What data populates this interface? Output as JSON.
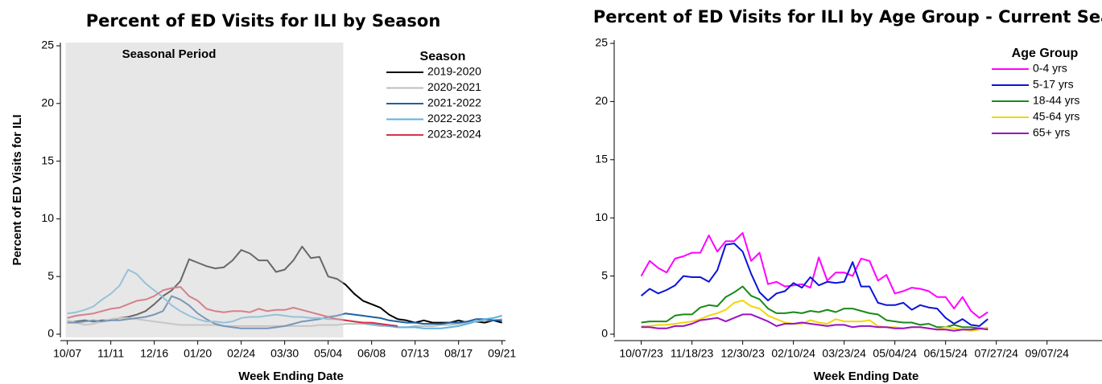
{
  "chart_data": [
    {
      "type": "line",
      "title": "Percent of ED Visits for ILI by Season",
      "x_label": "Week Ending Date",
      "y_label": "Percent of ED Visits for ILI",
      "annotation": "Seasonal Period",
      "shaded_range": [
        0,
        31
      ],
      "legend_title": "Season",
      "legend": "upper right",
      "xlim": [
        -0.8,
        50.4
      ],
      "ylim": [
        0,
        25
      ],
      "yticks": [
        0,
        5,
        10,
        15,
        20,
        25
      ],
      "xticks": [
        {
          "value": 0,
          "label": "10/07"
        },
        {
          "value": 5,
          "label": "11/11"
        },
        {
          "value": 10,
          "label": "12/16"
        },
        {
          "value": 15,
          "label": "01/20"
        },
        {
          "value": 20,
          "label": "02/24"
        },
        {
          "value": 25,
          "label": "03/30"
        },
        {
          "value": 30,
          "label": "05/04"
        },
        {
          "value": 35,
          "label": "06/08"
        },
        {
          "value": 40,
          "label": "07/13"
        },
        {
          "value": 45,
          "label": "08/17"
        },
        {
          "value": 50,
          "label": "09/21"
        }
      ],
      "x": [
        0,
        1,
        2,
        3,
        4,
        5,
        6,
        7,
        8,
        9,
        10,
        11,
        12,
        13,
        14,
        15,
        16,
        17,
        18,
        19,
        20,
        21,
        22,
        23,
        24,
        25,
        26,
        27,
        28,
        29,
        30,
        31,
        32,
        33,
        34,
        35,
        36,
        37,
        38,
        39,
        40,
        41,
        42,
        43,
        44,
        45,
        46,
        47,
        48,
        49,
        50
      ],
      "series": [
        {
          "name": "2019-2020",
          "color": "#000000",
          "values": [
            1.0,
            1.1,
            1.2,
            1.1,
            1.2,
            1.2,
            1.4,
            1.5,
            1.7,
            2.0,
            2.6,
            3.3,
            3.8,
            4.6,
            6.5,
            6.2,
            5.9,
            5.7,
            5.8,
            6.4,
            7.3,
            7.0,
            6.4,
            6.4,
            5.4,
            5.6,
            6.4,
            7.6,
            6.6,
            6.7,
            5.0,
            4.8,
            4.3,
            3.5,
            2.9,
            2.6,
            2.3,
            1.7,
            1.3,
            1.2,
            1.0,
            1.2,
            1.0,
            1.0,
            1.0,
            1.2,
            1.0,
            1.1,
            1.0,
            1.2,
            1.0
          ]
        },
        {
          "name": "2020-2021",
          "color": "#bdbdbd",
          "values": [
            1.2,
            1.0,
            0.8,
            0.9,
            1.1,
            1.3,
            1.4,
            1.4,
            1.3,
            1.2,
            1.1,
            1.0,
            0.9,
            0.8,
            0.8,
            0.8,
            0.8,
            0.8,
            0.7,
            0.7,
            0.7,
            0.7,
            0.7,
            0.7,
            0.7,
            0.7,
            0.7,
            0.7,
            0.7,
            0.8,
            0.8,
            0.8,
            0.9,
            0.9,
            0.9,
            0.8,
            0.7,
            0.7,
            0.6,
            0.6,
            0.7,
            0.7,
            0.7,
            0.8,
            0.8,
            0.9,
            1.0,
            1.1,
            1.2,
            1.2,
            1.3
          ]
        },
        {
          "name": "2021-2022",
          "color": "#1f5f9f",
          "values": [
            1.0,
            1.0,
            1.1,
            1.2,
            1.1,
            1.2,
            1.2,
            1.3,
            1.4,
            1.5,
            1.7,
            2.0,
            3.3,
            3.0,
            2.5,
            1.8,
            1.3,
            0.9,
            0.7,
            0.6,
            0.5,
            0.5,
            0.5,
            0.5,
            0.6,
            0.7,
            0.9,
            1.1,
            1.2,
            1.3,
            1.5,
            1.6,
            1.8,
            1.7,
            1.6,
            1.5,
            1.4,
            1.2,
            1.1,
            1.0,
            1.0,
            0.9,
            0.9,
            0.9,
            1.0,
            1.0,
            1.1,
            1.3,
            1.3,
            1.2,
            1.2
          ]
        },
        {
          "name": "2022-2023",
          "color": "#5ab4e5",
          "values": [
            1.8,
            1.9,
            2.1,
            2.4,
            3.0,
            3.5,
            4.2,
            5.6,
            5.2,
            4.4,
            3.8,
            3.2,
            2.5,
            2.0,
            1.6,
            1.3,
            1.1,
            1.1,
            1.0,
            1.1,
            1.4,
            1.5,
            1.5,
            1.6,
            1.7,
            1.6,
            1.5,
            1.5,
            1.4,
            1.4,
            1.3,
            1.3,
            1.2,
            1.1,
            1.0,
            0.9,
            0.8,
            0.7,
            0.6,
            0.6,
            0.6,
            0.5,
            0.5,
            0.5,
            0.6,
            0.7,
            0.9,
            1.1,
            1.3,
            1.4,
            1.6
          ]
        },
        {
          "name": "2023-2024",
          "color": "#d8324a",
          "values": [
            1.4,
            1.6,
            1.7,
            1.8,
            2.0,
            2.2,
            2.3,
            2.6,
            2.9,
            3.0,
            3.3,
            3.8,
            4.0,
            4.1,
            3.3,
            2.9,
            2.2,
            2.0,
            1.9,
            2.0,
            2.0,
            1.9,
            2.2,
            2.0,
            2.1,
            2.1,
            2.3,
            2.1,
            1.9,
            1.7,
            1.5,
            1.3,
            1.2,
            1.1,
            1.0,
            1.0,
            0.9,
            0.8,
            0.7,
            null,
            null,
            null,
            null,
            null,
            null,
            null,
            null,
            null,
            null,
            null,
            null
          ]
        }
      ]
    },
    {
      "type": "line",
      "title": "Percent of ED Visits for ILI by Age Group - Current Season",
      "x_label": "Week Ending Date",
      "legend_title": "Age Group",
      "legend": "upper right",
      "xlim": [
        -3.2,
        54.5
      ],
      "ylim": [
        0,
        25
      ],
      "yticks": [
        0,
        5,
        10,
        15,
        20,
        25
      ],
      "xticks": [
        {
          "value": 0,
          "label": "10/07/23"
        },
        {
          "value": 6,
          "label": "11/18/23"
        },
        {
          "value": 12,
          "label": "12/30/23"
        },
        {
          "value": 18,
          "label": "02/10/24"
        },
        {
          "value": 24,
          "label": "03/23/24"
        },
        {
          "value": 30,
          "label": "05/04/24"
        },
        {
          "value": 36,
          "label": "06/15/24"
        },
        {
          "value": 42,
          "label": "07/27/24"
        },
        {
          "value": 48,
          "label": "09/07/24"
        }
      ],
      "x": [
        0,
        1,
        2,
        3,
        4,
        5,
        6,
        7,
        8,
        9,
        10,
        11,
        12,
        13,
        14,
        15,
        16,
        17,
        18,
        19,
        20,
        21,
        22,
        23,
        24,
        25,
        26,
        27,
        28,
        29,
        30,
        31,
        32,
        33,
        34,
        35,
        36,
        37,
        38,
        39,
        40,
        41
      ],
      "series": [
        {
          "name": "0-4 yrs",
          "color": "#ff00ff",
          "values": [
            5.0,
            6.3,
            5.7,
            5.3,
            6.5,
            6.7,
            7.0,
            7.0,
            8.5,
            7.1,
            8.0,
            8.0,
            8.7,
            6.3,
            7.0,
            4.3,
            4.5,
            4.1,
            4.2,
            4.3,
            4.0,
            6.6,
            4.6,
            5.3,
            5.3,
            5.0,
            6.5,
            6.3,
            4.6,
            5.1,
            3.5,
            3.7,
            4.0,
            3.9,
            3.7,
            3.2,
            3.2,
            2.2,
            3.2,
            2.0,
            1.4,
            1.9
          ]
        },
        {
          "name": "5-17 yrs",
          "color": "#0a14d6",
          "values": [
            3.3,
            3.9,
            3.5,
            3.8,
            4.2,
            5.0,
            4.9,
            4.9,
            4.5,
            5.5,
            7.7,
            7.8,
            7.1,
            5.2,
            3.6,
            2.9,
            3.5,
            3.7,
            4.4,
            4.0,
            4.9,
            4.2,
            4.5,
            4.4,
            4.5,
            6.2,
            4.1,
            4.1,
            2.7,
            2.5,
            2.5,
            2.7,
            2.1,
            2.5,
            2.3,
            2.2,
            1.4,
            0.9,
            1.3,
            0.8,
            0.7,
            1.3
          ]
        },
        {
          "name": "18-44 yrs",
          "color": "#1a8a1a",
          "values": [
            1.0,
            1.1,
            1.1,
            1.1,
            1.6,
            1.7,
            1.7,
            2.3,
            2.5,
            2.4,
            3.2,
            3.6,
            4.1,
            3.3,
            3.0,
            2.2,
            1.8,
            1.8,
            1.9,
            1.8,
            2.0,
            1.9,
            2.1,
            1.9,
            2.2,
            2.2,
            2.0,
            1.8,
            1.7,
            1.2,
            1.1,
            1.0,
            1.0,
            0.8,
            0.9,
            0.6,
            0.6,
            0.8,
            0.6,
            0.6,
            0.5,
            0.5
          ]
        },
        {
          "name": "45-64 yrs",
          "color": "#f2d60a",
          "values": [
            0.7,
            0.7,
            0.8,
            0.8,
            0.9,
            1.0,
            1.1,
            1.3,
            1.6,
            1.8,
            2.1,
            2.7,
            2.9,
            2.4,
            2.2,
            1.6,
            1.3,
            1.0,
            0.9,
            0.9,
            1.2,
            1.0,
            0.9,
            1.3,
            1.1,
            1.1,
            1.1,
            1.2,
            0.7,
            0.6,
            0.6,
            0.5,
            0.6,
            0.6,
            0.5,
            0.4,
            0.6,
            0.5,
            0.4,
            0.3,
            0.4,
            0.6
          ]
        },
        {
          "name": "65+ yrs",
          "color": "#9a12c4",
          "values": [
            0.6,
            0.6,
            0.5,
            0.5,
            0.7,
            0.7,
            0.9,
            1.2,
            1.3,
            1.4,
            1.1,
            1.4,
            1.7,
            1.7,
            1.4,
            1.1,
            0.7,
            0.9,
            0.9,
            1.0,
            0.9,
            0.8,
            0.7,
            0.8,
            0.8,
            0.6,
            0.7,
            0.7,
            0.6,
            0.6,
            0.5,
            0.5,
            0.6,
            0.6,
            0.5,
            0.4,
            0.4,
            0.3,
            0.4,
            0.4,
            0.5,
            0.4
          ]
        }
      ]
    }
  ]
}
